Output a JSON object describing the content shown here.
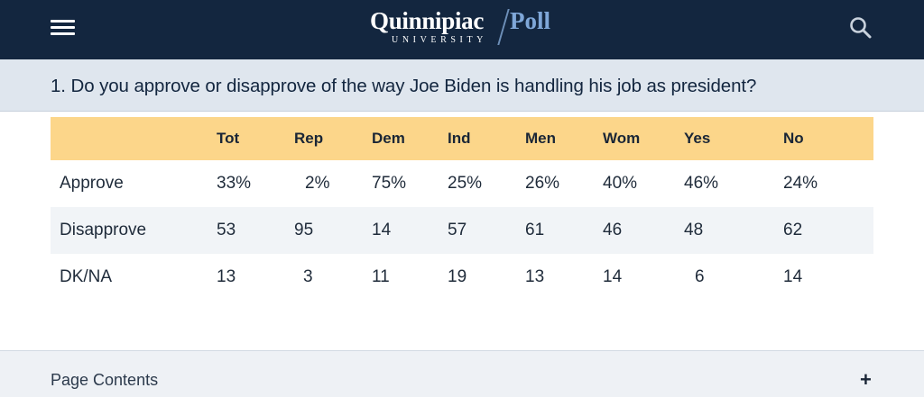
{
  "header": {
    "logo_main": "Quinnipiac",
    "logo_poll": "Poll",
    "logo_sub": "UNIVERSITY",
    "menu_icon": "hamburger-menu-icon",
    "search_icon": "search-icon",
    "background_color": "#13263f"
  },
  "question": {
    "text": "1. Do you approve or disapprove of the way Joe Biden is handling his job as president?"
  },
  "table": {
    "header_color": "#fcd68a",
    "columns": [
      "",
      "Tot",
      "Rep",
      "Dem",
      "Ind",
      "Men",
      "Wom",
      "Yes",
      "No"
    ],
    "rows": [
      {
        "label": "Approve",
        "values": [
          "33%",
          "2%",
          "75%",
          "25%",
          "26%",
          "40%",
          "46%",
          "24%"
        ]
      },
      {
        "label": "Disapprove",
        "values": [
          "53",
          "95",
          "14",
          "57",
          "61",
          "46",
          "48",
          "62"
        ]
      },
      {
        "label": "DK/NA",
        "values": [
          "13",
          "3",
          "11",
          "19",
          "13",
          "14",
          "6",
          "14"
        ]
      }
    ]
  },
  "page_contents": {
    "label": "Page Contents",
    "toggle": "+"
  }
}
